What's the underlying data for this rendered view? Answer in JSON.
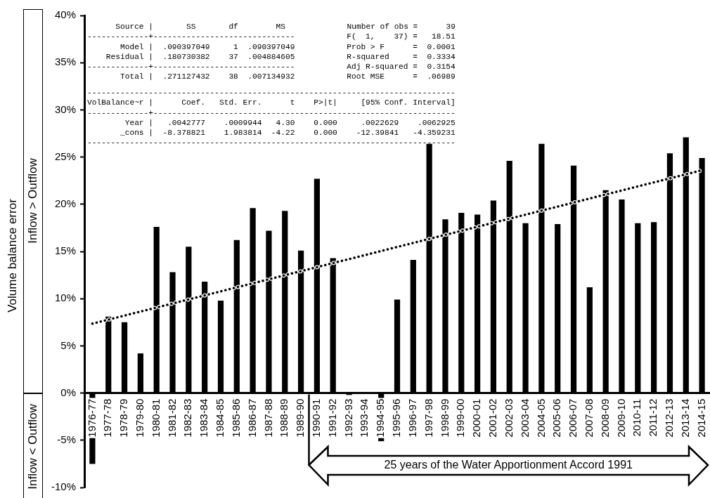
{
  "chart_data": {
    "type": "bar",
    "ylabel": "Volume balance error",
    "categories": [
      "1976-77",
      "1977-78",
      "1978-79",
      "1979-80",
      "1980-81",
      "1981-82",
      "1982-83",
      "1983-84",
      "1984-85",
      "1985-86",
      "1986-87",
      "1987-88",
      "1988-89",
      "1989-90",
      "1990-91",
      "1991-92",
      "1992-93",
      "1993-94",
      "1994-95",
      "1995-96",
      "1996-97",
      "1997-98",
      "1998-99",
      "1999-00",
      "2000-01",
      "2001-02",
      "2002-03",
      "2003-04",
      "2004-05",
      "2005-06",
      "2006-07",
      "2007-08",
      "2008-09",
      "2009-10",
      "2010-11",
      "2011-12",
      "2012-13",
      "2013-14",
      "2014-15"
    ],
    "series": [
      {
        "color": "#000000",
        "values": [
          -7.5,
          8.1,
          7.5,
          4.2,
          17.6,
          12.8,
          15.5,
          11.8,
          9.8,
          16.2,
          19.6,
          17.2,
          19.3,
          15.1,
          22.7,
          14.3,
          -0.2,
          0,
          -5.1,
          9.9,
          14.1,
          26.4,
          18.4,
          19.1,
          18.9,
          20.4,
          24.6,
          18.0,
          26.4,
          17.9,
          24.1,
          11.2,
          21.5,
          20.5,
          18.0,
          18.1,
          25.4,
          27.1,
          24.9
        ]
      },
      {
        "type": "line",
        "color": "#000000",
        "x": [
          "1976-77",
          "2014-15"
        ],
        "values": [
          7.35,
          23.6
        ],
        "line_style": "dotted",
        "marker": "none"
      }
    ],
    "ylim": [
      -10,
      40
    ],
    "yticks": [
      {
        "value": -10,
        "label": "-10%"
      },
      {
        "value": -5,
        "label": "-5%"
      },
      {
        "value": 0,
        "label": "0%"
      },
      {
        "value": 5,
        "label": "5%"
      },
      {
        "value": 10,
        "label": "10%"
      },
      {
        "value": 15,
        "label": "15%"
      },
      {
        "value": 20,
        "label": "20%"
      },
      {
        "value": 25,
        "label": "25%"
      },
      {
        "value": 30,
        "label": "30%"
      },
      {
        "value": 35,
        "label": "35%"
      },
      {
        "value": 40,
        "label": "40%"
      }
    ],
    "grid": false,
    "legend": false,
    "annotations": [
      "      Source |       SS       df        MS\n-------------+------------------------------           F(  1,    37) =   18.51\n       Model |  .090397049     1  .090397049           Prob > F      =  0.0001\n    Residual |  .180730382    37  .004884605           R-squared     =  0.3334\n-------------+------------------------------           Adj R-squared =  0.3154\n       Total |  .271127432    38  .007134932           Root MSE      =  .06989",
      "------------------------------------------------------------------------------\nVolBalance~r |      Coef.   Std. Err.      t    P>|t|     [95% Conf. Interval]\n-------------+----------------------------------------------------------------\n        Year |   .0042777    .0009944   4.30    0.000     .0022629    .0062925\n       _cons |  -8.378821    1.983814  -4.22    0.000    -12.39841   -4.359231\n------------------------------------------------------------------------------",
      "Number of obs =      39",
      "25 years of the Water Apportionment Accord 1991",
      "Inflow > Outflow",
      "Inflow < Outflow"
    ]
  }
}
